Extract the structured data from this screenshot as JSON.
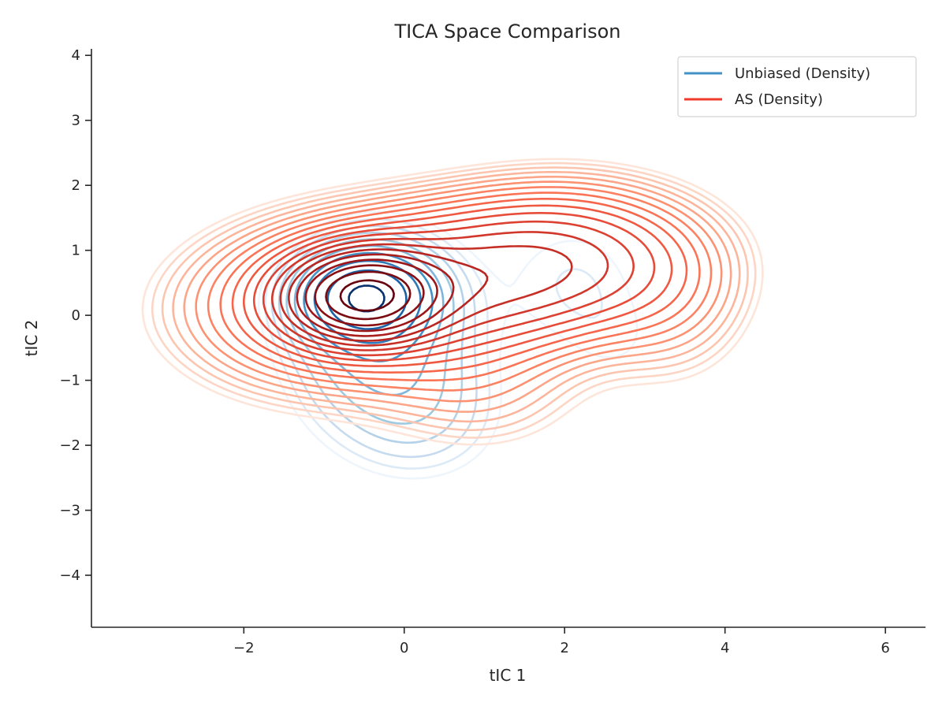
{
  "chart_data": {
    "type": "contour",
    "title": "TICA Space Comparison",
    "xlabel": "tIC 1",
    "ylabel": "tIC 2",
    "xlim": [
      -3.9,
      6.5
    ],
    "ylim": [
      -4.8,
      4.1
    ],
    "xticks": [
      -2,
      0,
      2,
      4,
      6
    ],
    "yticks": [
      -4,
      -3,
      -2,
      -1,
      0,
      1,
      2,
      3,
      4
    ],
    "xtick_labels": [
      "−2",
      "0",
      "2",
      "4",
      "6"
    ],
    "ytick_labels": [
      "−4",
      "−3",
      "−2",
      "−1",
      "0",
      "1",
      "2",
      "3",
      "4"
    ],
    "grid": false,
    "legend_position": "upper right",
    "legend": [
      {
        "label": "Unbiased (Density)",
        "color": "#4292c6"
      },
      {
        "label": "AS (Density)",
        "color": "#ef3b2c"
      }
    ],
    "series": [
      {
        "name": "Unbiased (Density)",
        "colormap": "Blues",
        "peak": [
          -0.5,
          0.3
        ],
        "levels": 10,
        "outermost_extent": {
          "x": [
            -1.8,
            3.6
          ],
          "y": [
            -3.1,
            2.0
          ]
        },
        "colors": [
          "#eef5fc",
          "#dceaf7",
          "#c6dbef",
          "#b3d1e8",
          "#9ecae1",
          "#7fb5db",
          "#4292c6",
          "#2f7ab8",
          "#1a61a6",
          "#08306b"
        ]
      },
      {
        "name": "AS (Density)",
        "colormap": "Reds",
        "peak": [
          -0.5,
          0.3
        ],
        "levels": 20,
        "outermost_extent": {
          "x": [
            -3.1,
            4.5
          ],
          "y": [
            -2.6,
            2.7
          ]
        },
        "colors": [
          "#fee5d9",
          "#fdd5c4",
          "#fcc5af",
          "#fcb59b",
          "#fca588",
          "#fc9272",
          "#fb8363",
          "#fa7455",
          "#f6664a",
          "#ef5941",
          "#e74c39",
          "#dd4131",
          "#d2372b",
          "#c62f26",
          "#b92621",
          "#ab1e1e",
          "#9c1619",
          "#8b1014",
          "#7a0b10",
          "#67000d"
        ]
      }
    ]
  }
}
